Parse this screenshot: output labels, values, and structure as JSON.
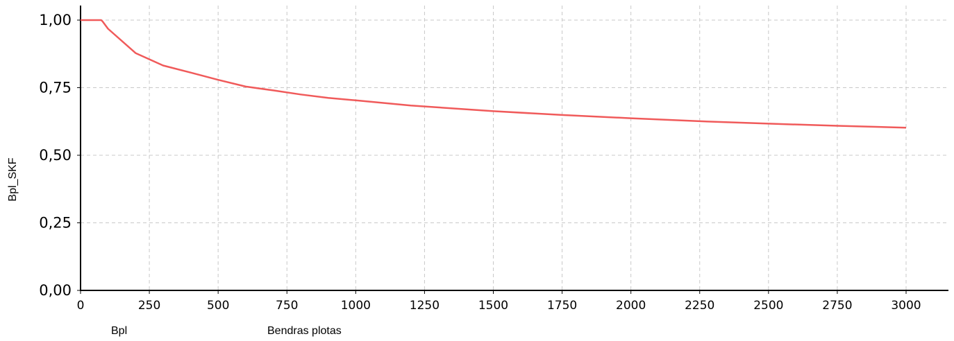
{
  "chart_data": {
    "type": "line",
    "title": "",
    "xlabel": "",
    "ylabel": "Bpl_SKF",
    "xlim": [
      0,
      3150
    ],
    "ylim": [
      0,
      1.05
    ],
    "x_ticks": [
      0,
      250,
      500,
      750,
      1000,
      1250,
      1500,
      1750,
      2000,
      2250,
      2500,
      2750,
      3000
    ],
    "x_tick_labels": [
      "0",
      "250",
      "500",
      "750",
      "1000",
      "1250",
      "1500",
      "1750",
      "2000",
      "2250",
      "2500",
      "2750",
      "3000"
    ],
    "y_ticks": [
      0,
      0.25,
      0.5,
      0.75,
      1.0
    ],
    "y_tick_labels": [
      "0,00",
      "0,25",
      "0,50",
      "0,75",
      "1,00"
    ],
    "grid": true,
    "legend_position": "bottom-left",
    "series": [
      {
        "name": "Bpl",
        "color": "#f05a5a",
        "x": [
          0,
          75,
          80,
          100,
          200,
          300,
          400,
          500,
          600,
          700,
          800,
          900,
          1000,
          1200,
          1500,
          1750,
          2000,
          2250,
          2500,
          2750,
          3000
        ],
        "y": [
          1.0,
          1.0,
          0.995,
          0.968,
          0.878,
          0.832,
          0.806,
          0.779,
          0.754,
          0.74,
          0.725,
          0.712,
          0.703,
          0.684,
          0.663,
          0.649,
          0.637,
          0.626,
          0.617,
          0.609,
          0.602
        ]
      }
    ],
    "legend": {
      "series_label": "Bpl",
      "description": "Bendras plotas"
    }
  }
}
